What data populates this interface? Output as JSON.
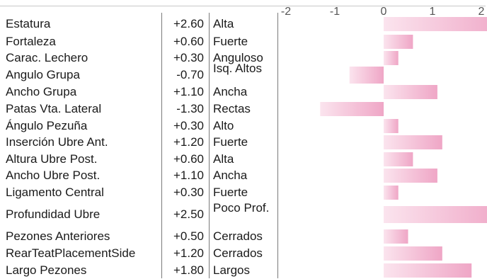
{
  "chart_data": {
    "type": "bar",
    "orientation": "horizontal",
    "xlim": [
      -2,
      2
    ],
    "x_ticks": [
      "-2",
      "-1",
      "0",
      "1",
      "2"
    ],
    "grid": false,
    "colors": {
      "bar_dark": "#efa6c6",
      "bar_light": "#fbe4ee",
      "text": "#1a1a1a",
      "tick": "#555555"
    },
    "rows": [
      {
        "trait": "Estatura",
        "value_label": "+2.60",
        "value": 2.6,
        "descriptor": "Alta"
      },
      {
        "trait": "Fortaleza",
        "value_label": "+0.60",
        "value": 0.6,
        "descriptor": "Fuerte"
      },
      {
        "trait": "Carac. Lechero",
        "value_label": "+0.30",
        "value": 0.3,
        "descriptor": "Anguloso"
      },
      {
        "trait": "Angulo Grupa",
        "value_label": "-0.70",
        "value": -0.7,
        "descriptor": "Isq. Altos"
      },
      {
        "trait": "Ancho Grupa",
        "value_label": "+1.10",
        "value": 1.1,
        "descriptor": "Ancha"
      },
      {
        "trait": "Patas Vta. Lateral",
        "value_label": "-1.30",
        "value": -1.3,
        "descriptor": "Rectas"
      },
      {
        "trait": "Ángulo Pezuña",
        "value_label": "+0.30",
        "value": 0.3,
        "descriptor": "Alto"
      },
      {
        "trait": "Inserción Ubre Ant.",
        "value_label": "+1.20",
        "value": 1.2,
        "descriptor": "Fuerte"
      },
      {
        "trait": "Altura Ubre Post.",
        "value_label": "+0.60",
        "value": 0.6,
        "descriptor": "Alta"
      },
      {
        "trait": "Ancho Ubre Post.",
        "value_label": "+1.10",
        "value": 1.1,
        "descriptor": "Ancha"
      },
      {
        "trait": "Ligamento Central",
        "value_label": "+0.30",
        "value": 0.3,
        "descriptor": "Fuerte"
      },
      {
        "trait": "Profundidad Ubre",
        "value_label": "+2.50",
        "value": 2.5,
        "descriptor": "Poco Prof."
      },
      {
        "trait": "Pezones Anteriores",
        "value_label": "+0.50",
        "value": 0.5,
        "descriptor": "Cerrados"
      },
      {
        "trait": "RearTeatPlacementSide",
        "value_label": "+1.20",
        "value": 1.2,
        "descriptor": "Cerrados"
      },
      {
        "trait": "Largo Pezones",
        "value_label": "+1.80",
        "value": 1.8,
        "descriptor": "Largos"
      }
    ]
  }
}
